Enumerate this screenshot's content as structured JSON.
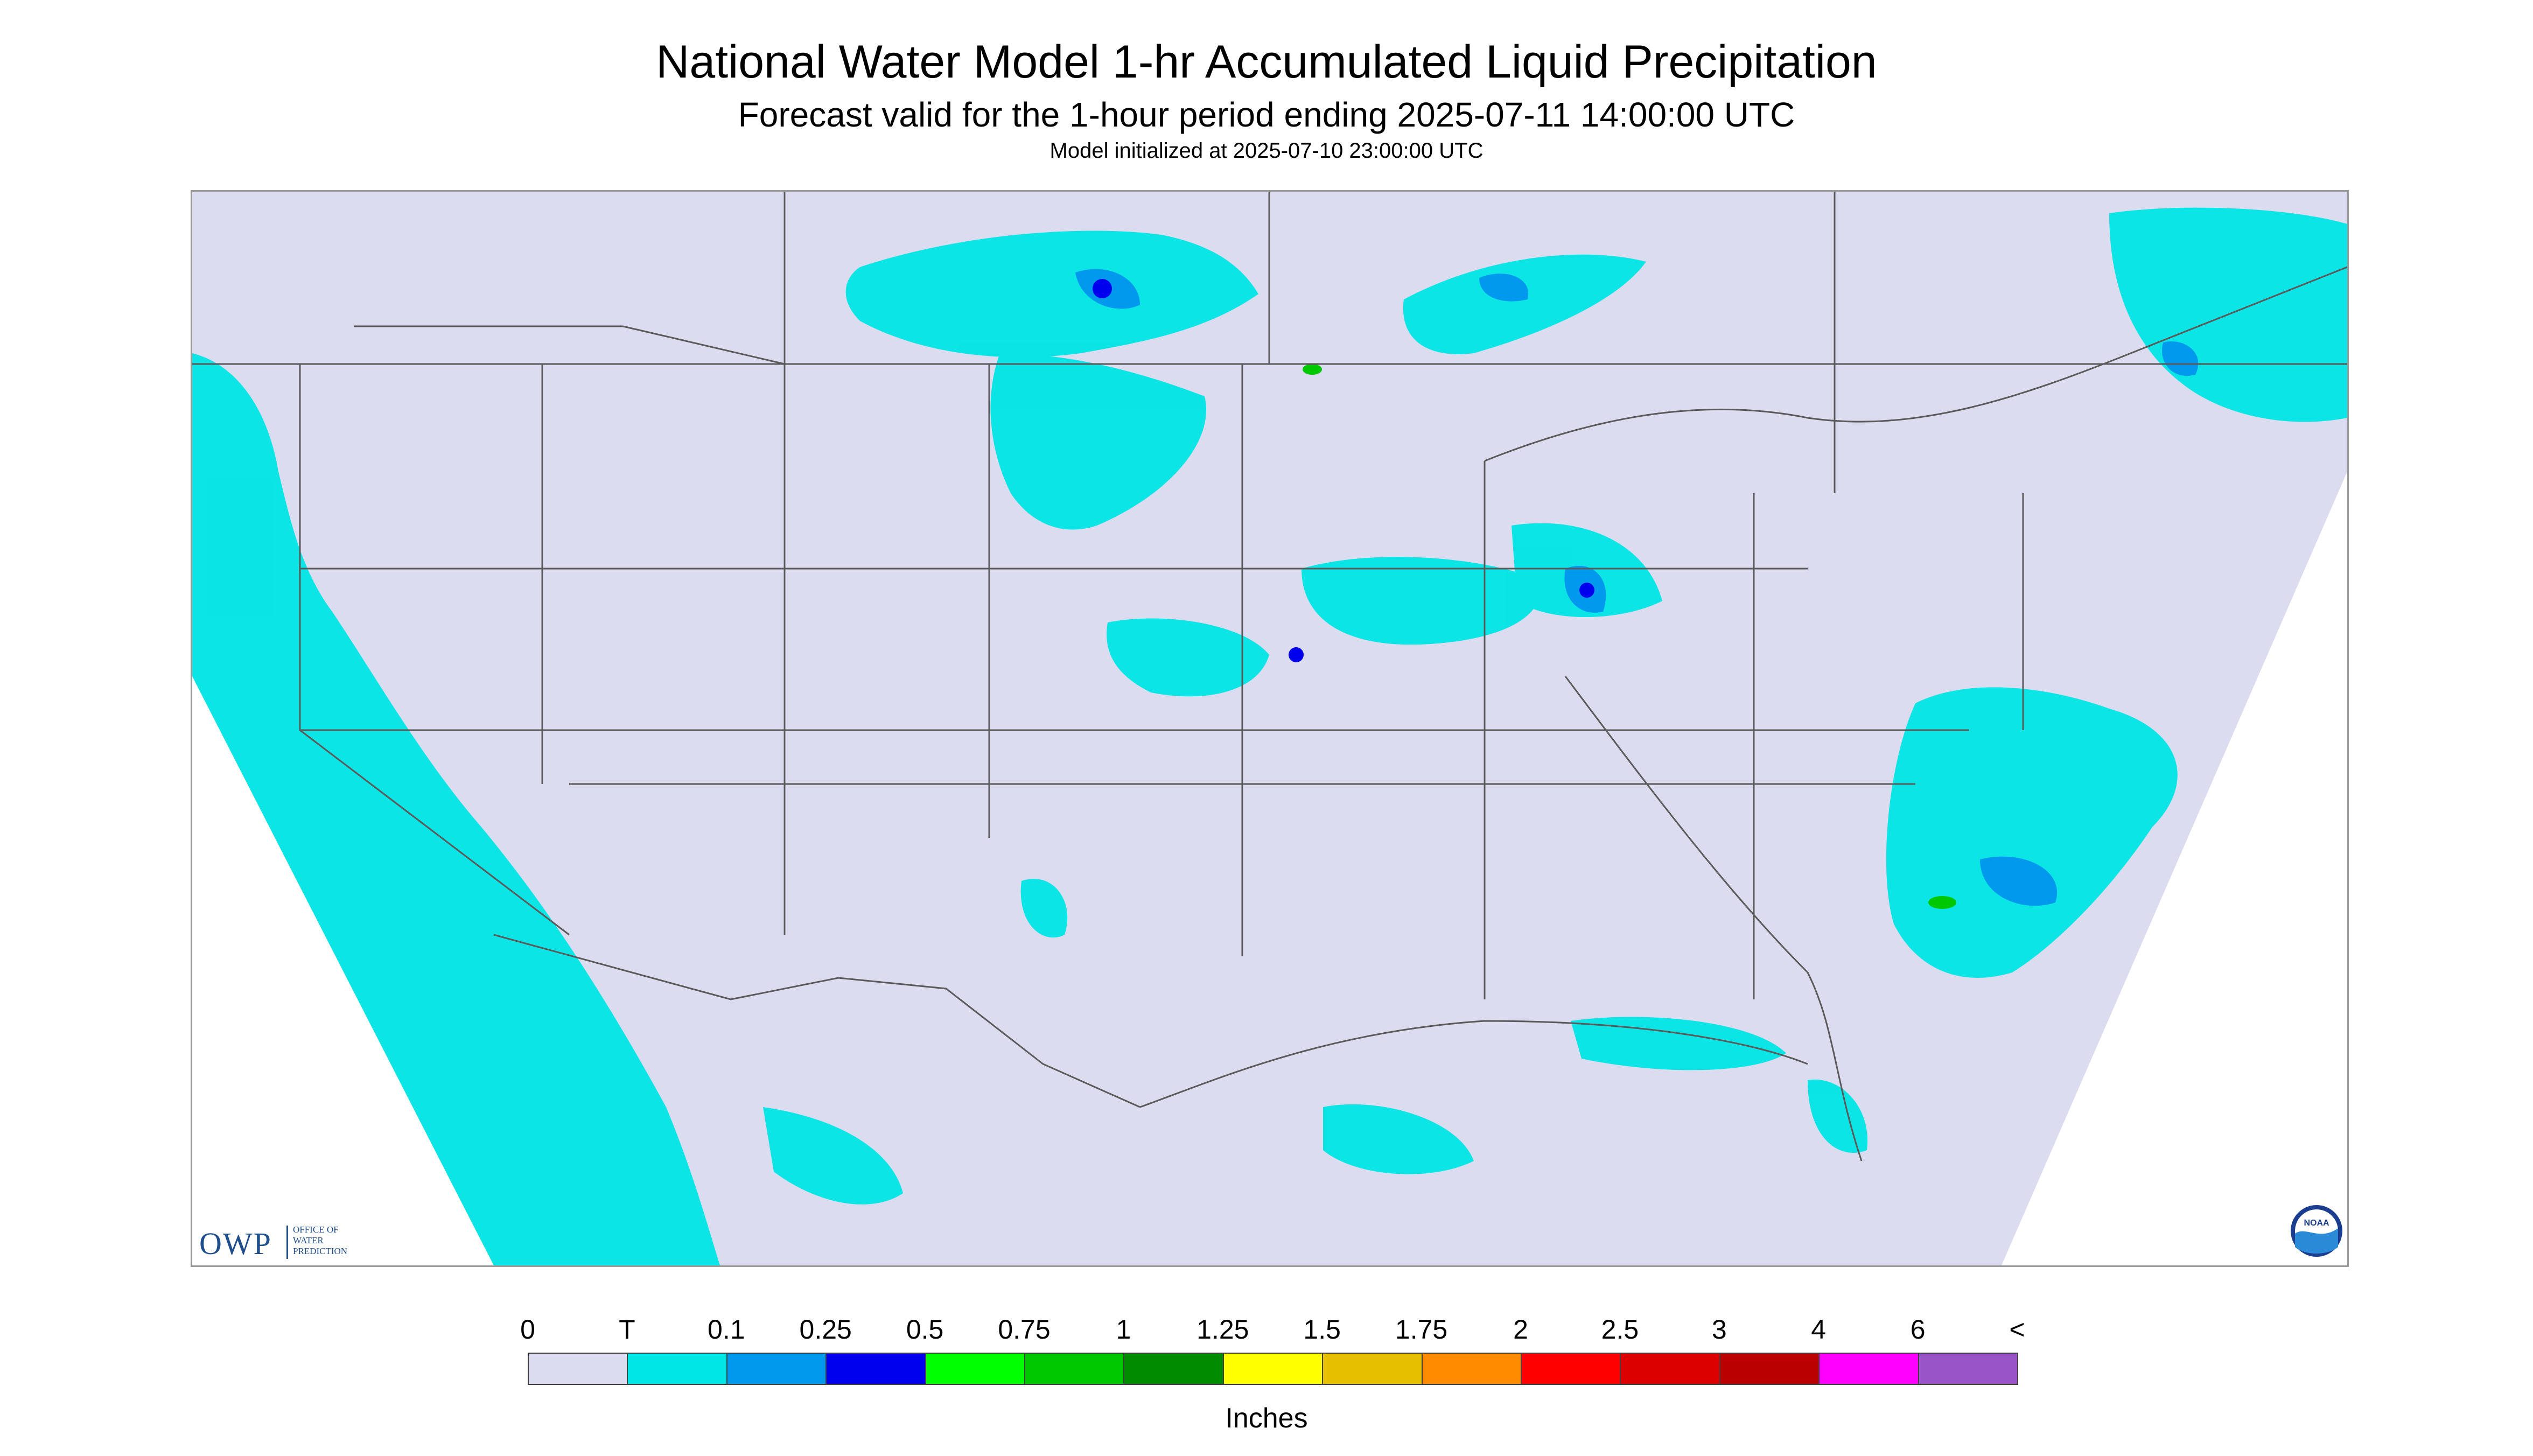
{
  "header": {
    "title": "National Water Model 1-hr Accumulated Liquid Precipitation",
    "subtitle": "Forecast valid for the 1-hour period ending 2025-07-11 14:00:00 UTC",
    "init": "Model initialized at 2025-07-10 23:00:00 UTC"
  },
  "logos": {
    "owp_abbrev": "OWP",
    "owp_name_lines": [
      "OFFICE OF",
      "WATER",
      "PREDICTION"
    ],
    "noaa_text": "NOAA"
  },
  "map": {
    "background_color": "#dcdcf0",
    "outside_domain_color": "#ffffff",
    "boundary_color": "#5a5a5a"
  },
  "legend": {
    "tick_labels": [
      "0",
      "T",
      "0.1",
      "0.25",
      "0.5",
      "0.75",
      "1",
      "1.25",
      "1.5",
      "1.75",
      "2",
      "2.5",
      "3",
      "4",
      "6",
      "<"
    ],
    "colors": [
      "#dcdcf0",
      "#00e5e5",
      "#0099ee",
      "#0000ee",
      "#00ff00",
      "#00c800",
      "#008c00",
      "#ffff00",
      "#e6c000",
      "#ff8c00",
      "#ff0000",
      "#dc0000",
      "#bb0000",
      "#ff00ff",
      "#9955c8"
    ],
    "units": "Inches"
  }
}
